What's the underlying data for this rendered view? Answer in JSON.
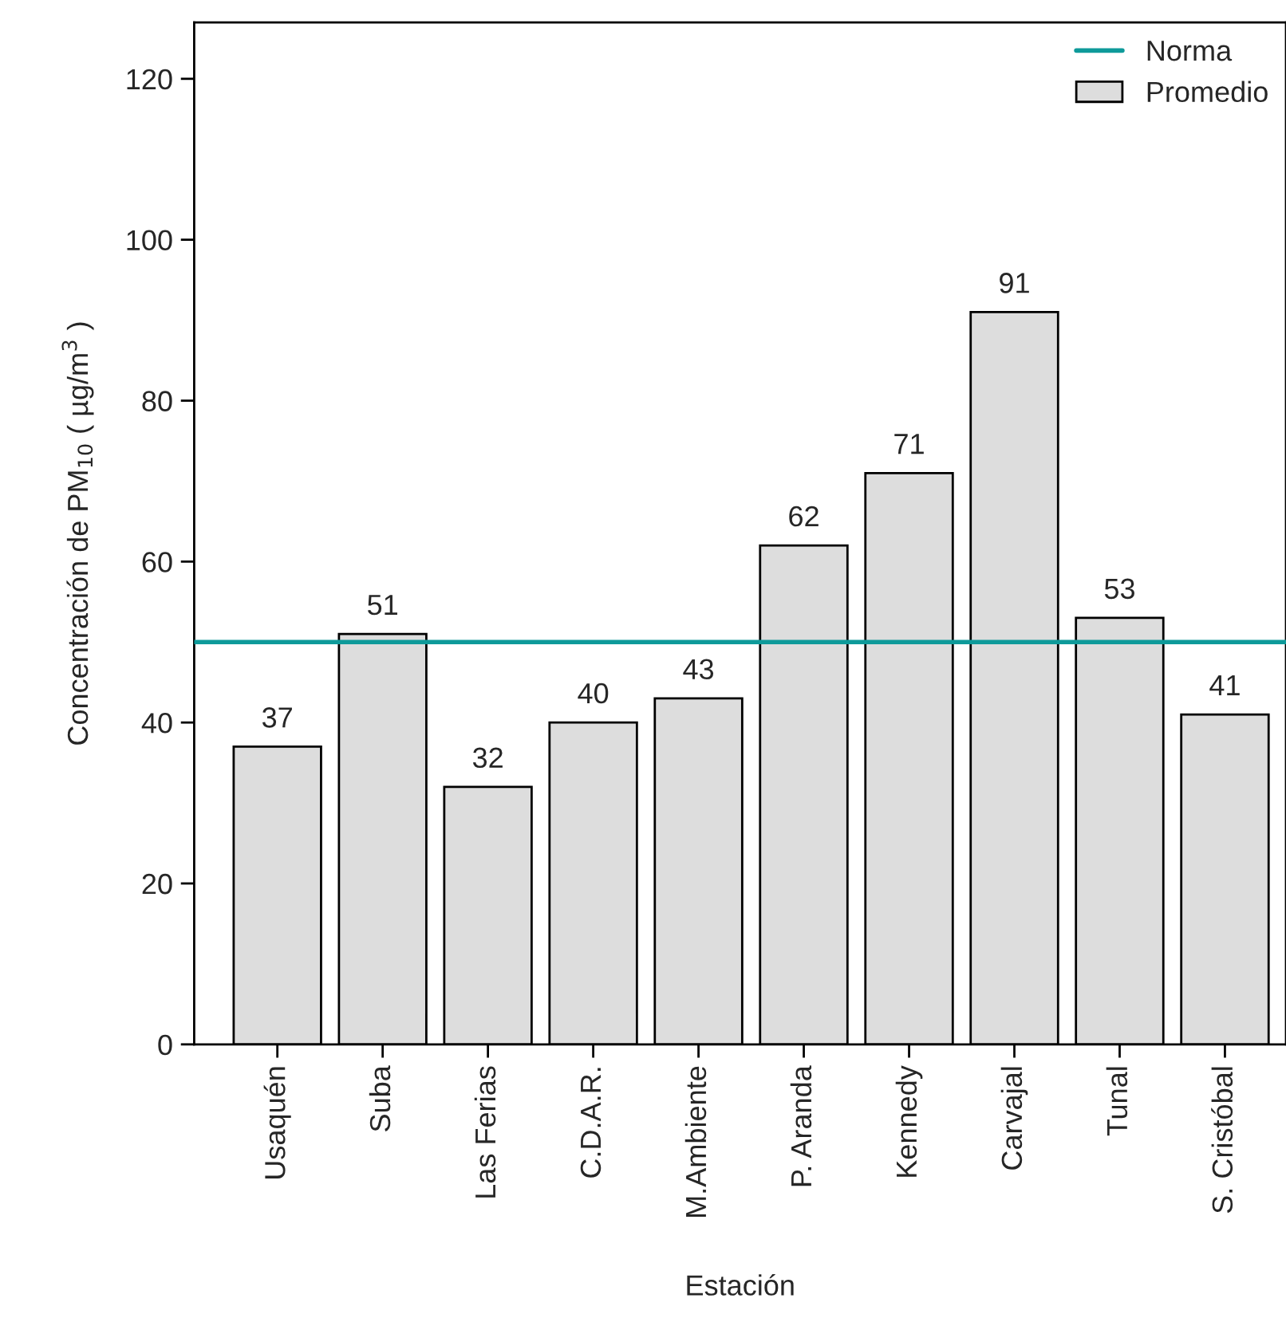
{
  "chart_data": {
    "type": "bar",
    "xlabel": "Estación",
    "ylabel": "Concentración de PM$_{10}$ ( µg/m$^{3}$ )",
    "categories": [
      "Usaquén",
      "Suba",
      "Las Ferias",
      "C.D.A.R.",
      "M.Ambiente",
      "P. Aranda",
      "Kennedy",
      "Carvajal",
      "Tunal",
      "S. Cristóbal"
    ],
    "series": [
      {
        "name": "Promedio",
        "color": "#dddddd",
        "values": [
          37,
          51,
          32,
          40,
          43,
          62,
          71,
          91,
          53,
          41
        ]
      }
    ],
    "ref_lines": [
      {
        "axis": "y",
        "value": 50,
        "label": "Norma",
        "color": "#0e9a9a"
      }
    ],
    "ylim": [
      0,
      127
    ],
    "yticks": [
      0,
      20,
      40,
      60,
      80,
      100,
      120
    ],
    "data_labels": true,
    "grid": false,
    "legend": "top right"
  }
}
